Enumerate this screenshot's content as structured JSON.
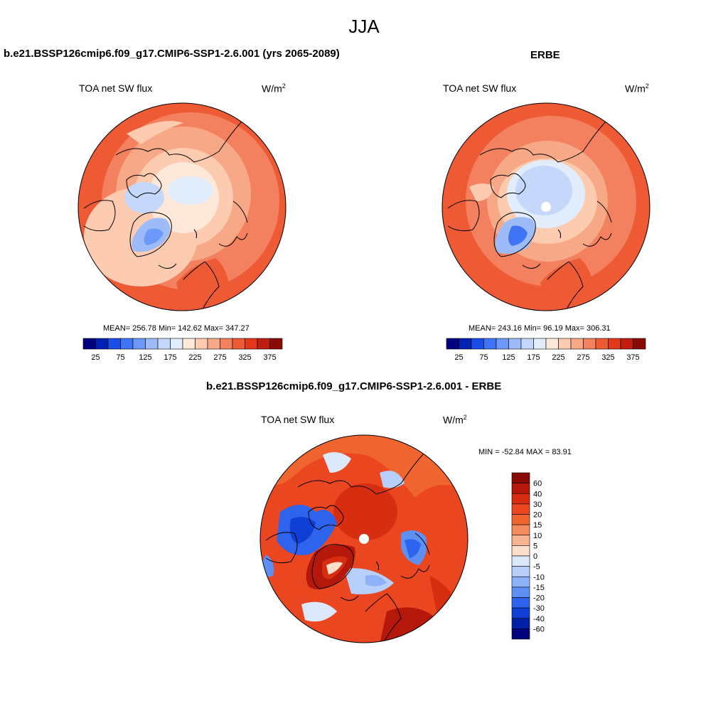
{
  "figure": {
    "title": "JJA"
  },
  "panels": [
    {
      "title": "b.e21.BSSP126cmip6.f09_g17.CMIP6-SSP1-2.6.001 (yrs 2065-2089)",
      "left_label": "TOA net SW flux",
      "units_base": "W/m",
      "units_sup": "2",
      "stats": {
        "text": "MEAN= 256.78  Min= 142.62  Max= 347.27",
        "mean": 256.78,
        "min": 142.62,
        "max": 347.27
      },
      "colorbar": {
        "ticks": [
          "25",
          "75",
          "125",
          "175",
          "225",
          "275",
          "325",
          "375"
        ],
        "colors": [
          "#00007f",
          "#0020b4",
          "#1a4ee8",
          "#3f74f5",
          "#6c98f8",
          "#9ebbf9",
          "#c5d8fb",
          "#e2edfb",
          "#fde8da",
          "#fccbb0",
          "#f7a886",
          "#f3805e",
          "#ee5a34",
          "#e2381a",
          "#c11d0e",
          "#8a0b05"
        ]
      }
    },
    {
      "title": "ERBE",
      "left_label": "TOA net SW flux",
      "units_base": "W/m",
      "units_sup": "2",
      "stats": {
        "text": "MEAN= 243.16  Min=  96.19  Max= 306.31",
        "mean": 243.16,
        "min": 96.19,
        "max": 306.31
      },
      "colorbar": {
        "ticks": [
          "25",
          "75",
          "125",
          "175",
          "225",
          "275",
          "325",
          "375"
        ],
        "colors": [
          "#00007f",
          "#0020b4",
          "#1a4ee8",
          "#3f74f5",
          "#6c98f8",
          "#9ebbf9",
          "#c5d8fb",
          "#e2edfb",
          "#fde8da",
          "#fccbb0",
          "#f7a886",
          "#f3805e",
          "#ee5a34",
          "#e2381a",
          "#c11d0e",
          "#8a0b05"
        ]
      }
    },
    {
      "title": "b.e21.BSSP126cmip6.f09_g17.CMIP6-SSP1-2.6.001 - ERBE",
      "left_label": "TOA net SW flux",
      "units_base": "W/m",
      "units_sup": "2",
      "stats": {
        "text": "MIN = -52.84 MAX =  83.91",
        "min": -52.84,
        "max": 83.91
      },
      "colorbar": {
        "ticks": [
          "60",
          "40",
          "30",
          "20",
          "15",
          "10",
          "5",
          "0",
          "-5",
          "-10",
          "-15",
          "-20",
          "-30",
          "-40",
          "-60"
        ],
        "colors": [
          "#8a0b05",
          "#b5170b",
          "#d72e12",
          "#ea4620",
          "#f0652f",
          "#f48c5d",
          "#f9b591",
          "#fde0cc",
          "#dde9fb",
          "#b7cff9",
          "#8eb2f7",
          "#5e8ff3",
          "#2e63ee",
          "#0f3fd4",
          "#0021a6",
          "#00007f"
        ]
      }
    }
  ]
}
